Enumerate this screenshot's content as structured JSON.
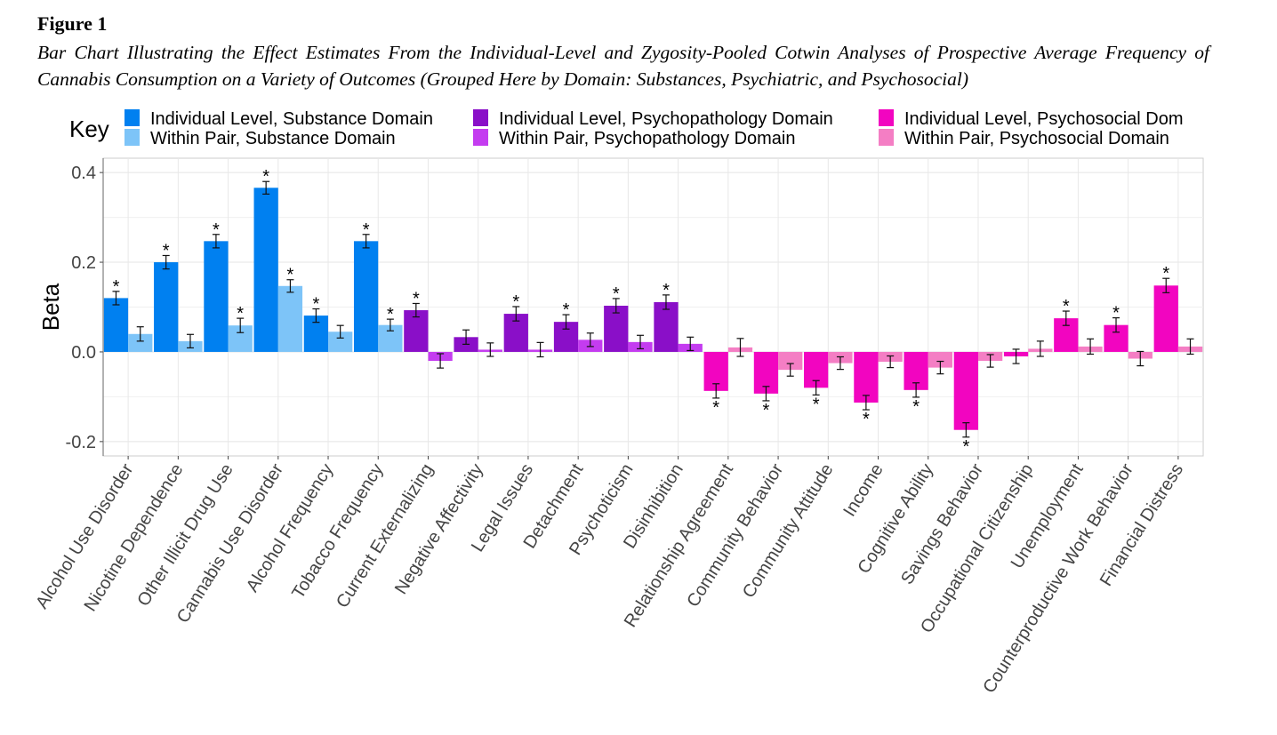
{
  "figure_label": "Figure 1",
  "caption": "Bar Chart Illustrating the Effect Estimates From the Individual-Level and Zygosity-Pooled Cotwin Analyses of Prospective Average Frequency of Cannabis Consumption on a Variety of Outcomes (Grouped Here by Domain: Substances, Psychiatric, and Psychosocial)",
  "chart_data": {
    "type": "bar",
    "ylabel": "Beta",
    "xlabel": "",
    "ylim": [
      -0.232,
      0.432
    ],
    "yticks": [
      -0.2,
      0.0,
      0.2,
      0.4
    ],
    "ytick_labels": [
      "-0.2",
      "0.0",
      "0.2",
      "0.4"
    ],
    "grid": true,
    "legend_title": "Key",
    "legend_placement": "top",
    "legend": [
      {
        "label": "Individual Level, Substance Domain",
        "color": "#0080F0"
      },
      {
        "label": "Within Pair, Substance Domain",
        "color": "#7DC4F8"
      },
      {
        "label": "Individual Level, Psychopathology Domain",
        "color": "#8A0FC8"
      },
      {
        "label": "Within Pair, Psychopathology Domain",
        "color": "#C43CF0"
      },
      {
        "label": "Individual Level, Psychosocial Dom",
        "color": "#F205C0"
      },
      {
        "label": "Within Pair, Psychosocial Domain",
        "color": "#F47EC4"
      }
    ],
    "significance_marker": "*",
    "categories": [
      "Alcohol Use Disorder",
      "Nicotine Dependence",
      "Other Illicit Drug Use",
      "Cannabis Use Disorder",
      "Alcohol Frequency",
      "Tobacco Frequency",
      "Current Externalizing",
      "Negative Affectivity",
      "Legal Issues",
      "Detachment",
      "Psychoticism",
      "Disinhibition",
      "Relationship Agreement",
      "Community Behavior",
      "Community Attitude",
      "Income",
      "Cognitive Ability",
      "Savings Behavior",
      "Occupational Citizenship",
      "Unemployment",
      "Counterproductive Work Behavior",
      "Financial Distress"
    ],
    "domains": [
      "substance",
      "substance",
      "substance",
      "substance",
      "substance",
      "substance",
      "psychopathology",
      "psychopathology",
      "psychopathology",
      "psychopathology",
      "psychopathology",
      "psychopathology",
      "psychosocial",
      "psychosocial",
      "psychosocial",
      "psychosocial",
      "psychosocial",
      "psychosocial",
      "psychosocial",
      "psychosocial",
      "psychosocial",
      "psychosocial"
    ],
    "series": [
      {
        "name": "Individual Level",
        "values": [
          0.12,
          0.2,
          0.247,
          0.366,
          0.081,
          0.247,
          0.093,
          0.033,
          0.085,
          0.067,
          0.103,
          0.111,
          -0.087,
          -0.093,
          -0.08,
          -0.113,
          -0.085,
          -0.174,
          -0.01,
          0.075,
          0.06,
          0.148
        ],
        "error": [
          0.015,
          0.015,
          0.015,
          0.014,
          0.015,
          0.015,
          0.015,
          0.016,
          0.016,
          0.016,
          0.016,
          0.016,
          0.016,
          0.016,
          0.016,
          0.016,
          0.016,
          0.016,
          0.016,
          0.016,
          0.016,
          0.016
        ],
        "significant": [
          true,
          true,
          true,
          true,
          true,
          true,
          true,
          false,
          true,
          true,
          true,
          true,
          true,
          true,
          true,
          true,
          true,
          true,
          false,
          true,
          true,
          true
        ]
      },
      {
        "name": "Within Pair",
        "values": [
          0.04,
          0.024,
          0.059,
          0.147,
          0.045,
          0.06,
          -0.02,
          0.005,
          0.005,
          0.027,
          0.022,
          0.018,
          0.01,
          -0.04,
          -0.025,
          -0.022,
          -0.035,
          -0.02,
          0.007,
          0.012,
          -0.015,
          0.012
        ],
        "error": [
          0.016,
          0.015,
          0.016,
          0.014,
          0.014,
          0.013,
          0.016,
          0.015,
          0.016,
          0.015,
          0.015,
          0.015,
          0.02,
          0.014,
          0.014,
          0.013,
          0.014,
          0.014,
          0.017,
          0.017,
          0.016,
          0.017
        ],
        "significant": [
          false,
          false,
          true,
          true,
          false,
          true,
          false,
          false,
          false,
          false,
          false,
          false,
          false,
          false,
          false,
          false,
          false,
          false,
          false,
          false,
          false,
          false
        ]
      }
    ]
  }
}
